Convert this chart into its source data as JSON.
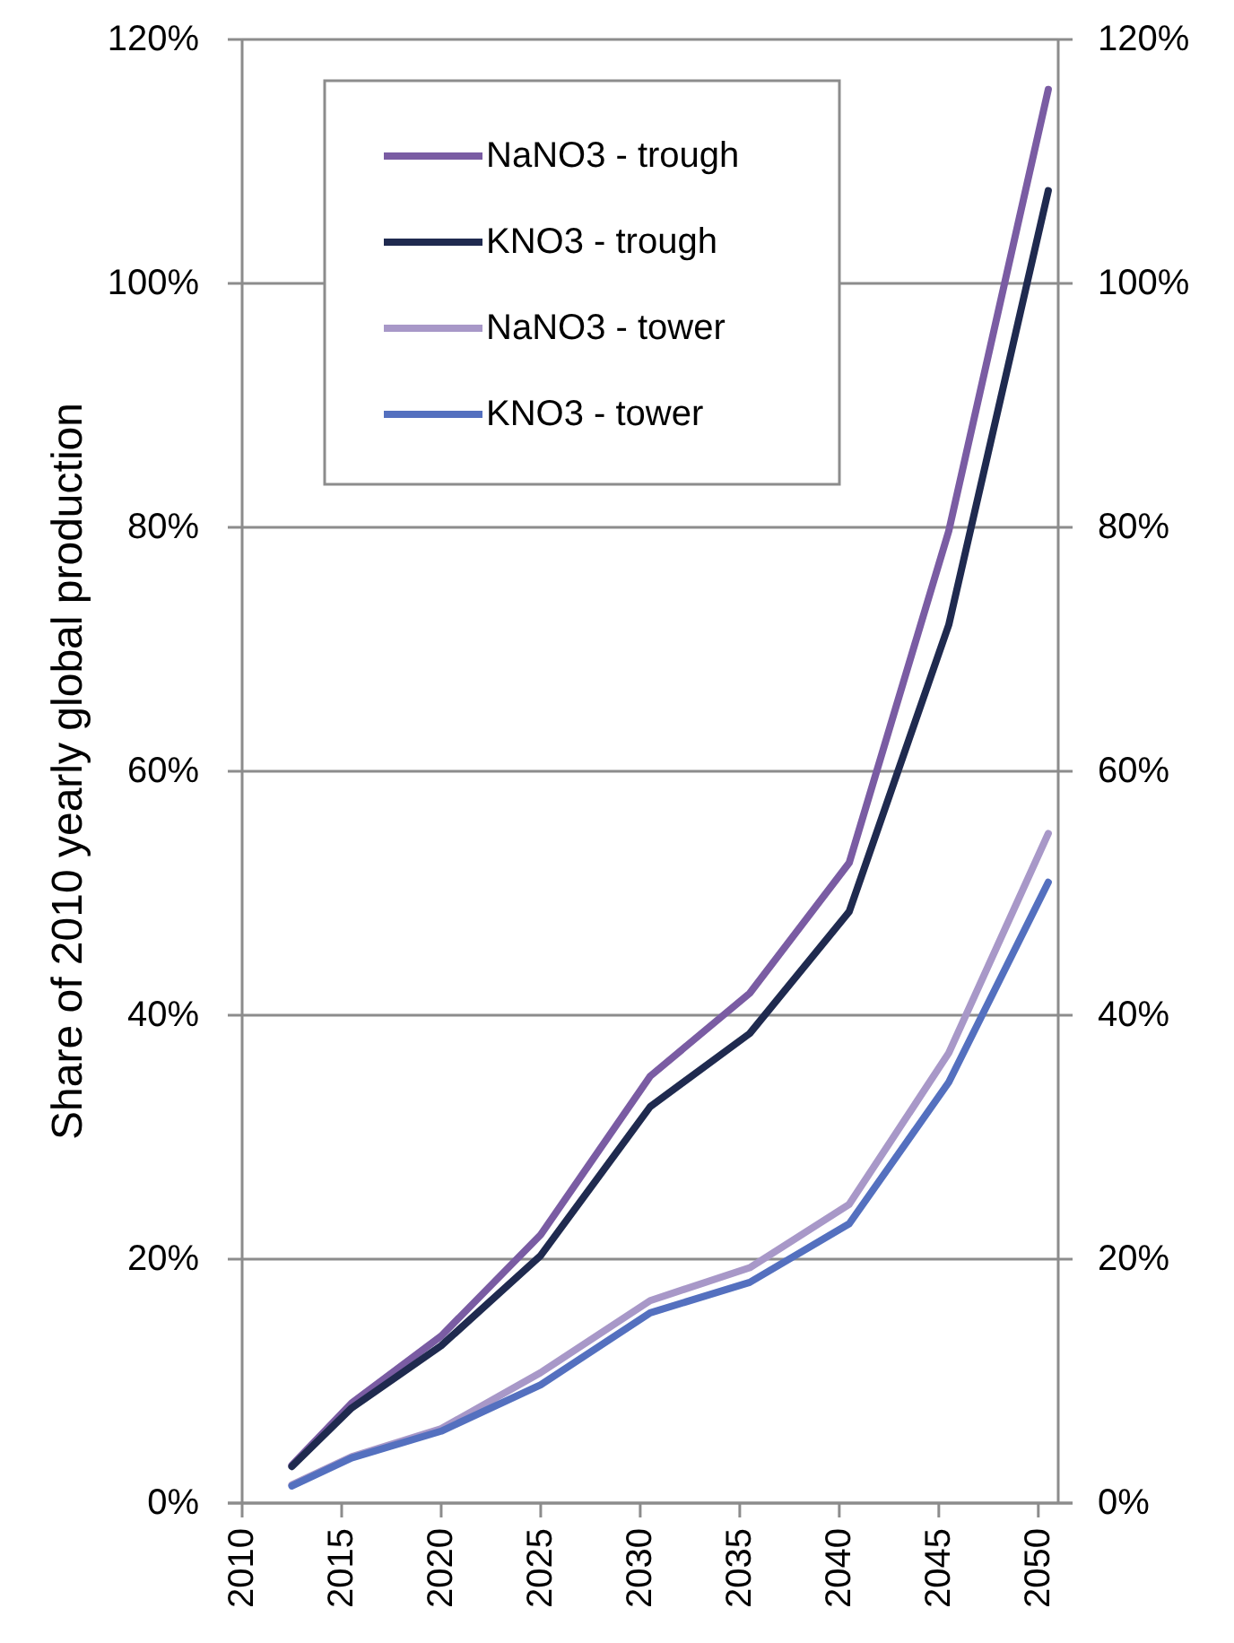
{
  "chart_data": {
    "type": "line",
    "ylabel": "Share of 2010 yearly global production",
    "x": [
      2012.5,
      2015.5,
      2020,
      2025,
      2030.5,
      2035.5,
      2040.5,
      2045.5,
      2050.5
    ],
    "series": [
      {
        "name": "NaNO3 - trough",
        "color": "#7a5ca3",
        "values": [
          3.1,
          8.2,
          13.7,
          22,
          35,
          41.8,
          52.5,
          79.7,
          115.9
        ]
      },
      {
        "name": "KNO3 - trough",
        "color": "#1f2a4f",
        "values": [
          3,
          7.8,
          12.9,
          20.3,
          32.5,
          38.5,
          48.5,
          72,
          107.6
        ]
      },
      {
        "name": "NaNO3 - tower",
        "color": "#a898c8",
        "values": [
          1.5,
          3.8,
          6.1,
          10.7,
          16.6,
          19.3,
          24.5,
          36.9,
          54.9
        ]
      },
      {
        "name": "KNO3 - tower",
        "color": "#5470bf",
        "values": [
          1.4,
          3.7,
          5.9,
          9.7,
          15.6,
          18.1,
          22.9,
          34.5,
          50.9
        ]
      }
    ],
    "xlim": [
      2010,
      2051
    ],
    "xticks": [
      2010,
      2015,
      2020,
      2025,
      2030,
      2035,
      2040,
      2045,
      2050
    ],
    "ylim": [
      0,
      120
    ],
    "yticks": [
      {
        "value": 0,
        "label": "0%"
      },
      {
        "value": 20,
        "label": "20%"
      },
      {
        "value": 40,
        "label": "40%"
      },
      {
        "value": 60,
        "label": "60%"
      },
      {
        "value": 80,
        "label": "80%"
      },
      {
        "value": 100,
        "label": "100%"
      },
      {
        "value": 120,
        "label": "120%"
      }
    ],
    "y2lim": [
      0,
      120
    ],
    "y2ticks": [
      {
        "value": 0,
        "label": "0%"
      },
      {
        "value": 20,
        "label": "20%"
      },
      {
        "value": 40,
        "label": "40%"
      },
      {
        "value": 60,
        "label": "60%"
      },
      {
        "value": 80,
        "label": "80%"
      },
      {
        "value": 100,
        "label": "100%"
      },
      {
        "value": 120,
        "label": "120%"
      }
    ],
    "grid": "y",
    "legend": "top left",
    "marker": "none",
    "line_style": "solid"
  }
}
